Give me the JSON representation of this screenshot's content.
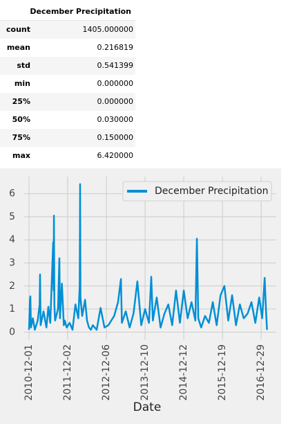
{
  "table": {
    "header": "December Precipitation",
    "rows": [
      [
        "count",
        "1405.000000"
      ],
      [
        "mean",
        "0.216819"
      ],
      [
        "std",
        "0.541399"
      ],
      [
        "min",
        "0.000000"
      ],
      [
        "25%",
        "0.000000"
      ],
      [
        "50%",
        "0.030000"
      ],
      [
        "75%",
        "0.150000"
      ],
      [
        "max",
        "6.420000"
      ]
    ]
  },
  "chart_data": {
    "type": "line",
    "xlabel": "Date",
    "x": [
      0,
      5,
      7,
      10,
      20,
      30,
      45,
      55,
      57,
      60,
      75,
      90,
      100,
      110,
      125,
      127,
      129,
      131,
      135,
      150,
      157,
      160,
      170,
      180,
      185,
      195,
      210,
      225,
      240,
      255,
      262,
      264,
      266,
      275,
      290,
      300,
      310,
      320,
      330,
      350,
      370,
      390,
      410,
      440,
      460,
      475,
      480,
      500,
      520,
      540,
      560,
      580,
      600,
      620,
      632,
      640,
      660,
      680,
      700,
      720,
      740,
      760,
      780,
      800,
      820,
      840,
      860,
      868,
      875,
      890,
      910,
      930,
      950,
      970,
      990,
      1010,
      1030,
      1050,
      1070,
      1090,
      1110,
      1130,
      1150,
      1170,
      1190,
      1205,
      1218,
      1225,
      1230
    ],
    "series": [
      {
        "name": "December Precipitation",
        "color": "#008fd5",
        "values": [
          0.1,
          1.4,
          1.55,
          0.2,
          0.6,
          0.1,
          0.5,
          1.2,
          2.5,
          0.3,
          0.9,
          0.2,
          1.1,
          0.4,
          3.9,
          1.8,
          5.05,
          1.2,
          0.5,
          1.0,
          3.2,
          0.6,
          2.1,
          0.3,
          0.5,
          0.2,
          0.4,
          0.1,
          1.2,
          0.6,
          2.0,
          6.42,
          1.5,
          0.7,
          1.4,
          0.5,
          0.2,
          0.1,
          0.3,
          0.1,
          1.05,
          0.2,
          0.3,
          0.7,
          1.3,
          2.3,
          0.4,
          0.9,
          0.2,
          0.8,
          2.2,
          0.3,
          1.0,
          0.4,
          2.4,
          0.5,
          1.5,
          0.2,
          0.8,
          1.2,
          0.3,
          1.8,
          0.4,
          1.8,
          0.6,
          1.3,
          0.5,
          4.05,
          0.6,
          0.2,
          0.7,
          0.4,
          1.3,
          0.3,
          1.6,
          2.0,
          0.5,
          1.6,
          0.3,
          1.2,
          0.6,
          0.8,
          1.3,
          0.4,
          1.5,
          0.6,
          2.35,
          0.9,
          0.1
        ]
      }
    ],
    "xlim": [
      -25,
      1278
    ],
    "xticks": [
      {
        "value": 0,
        "label": "2010-12-01"
      },
      {
        "value": 200,
        "label": "2011-12-02"
      },
      {
        "value": 400,
        "label": "2012-12-06"
      },
      {
        "value": 600,
        "label": "2013-12-10"
      },
      {
        "value": 800,
        "label": "2014-12-12"
      },
      {
        "value": 1000,
        "label": "2015-12-19"
      },
      {
        "value": 1200,
        "label": "2016-12-29"
      }
    ],
    "ylim": [
      -0.32,
      6.74
    ],
    "yticks": [
      0,
      1,
      2,
      3,
      4,
      5,
      6
    ],
    "grid": true,
    "legend": "upper right"
  }
}
